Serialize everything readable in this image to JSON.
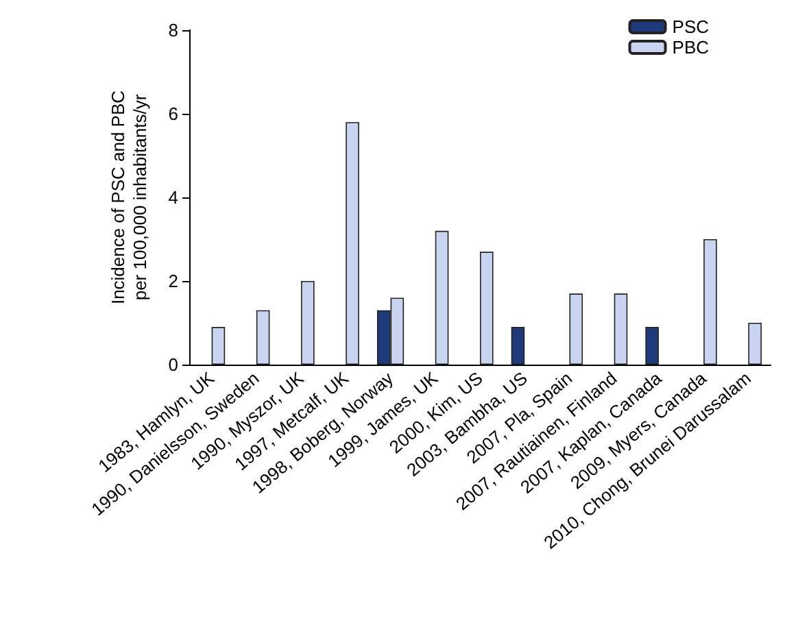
{
  "chart_data": {
    "type": "bar",
    "ylabel": "Incidence of PSC and PBC\nper 100,000 inhabitants/yr",
    "categories": [
      "1983, Hamlyn, UK",
      "1990, Danielsson, Sweden",
      "1990, Myszor, UK",
      "1997, Metcalf, UK",
      "1998, Boberg, Norway",
      "1999, James, UK",
      "2000, Kim, US",
      "2003, Bambha, US",
      "2007, Pla, Spain",
      "2007, Rautiainen, Finland",
      "2007, Kaplan, Canada",
      "2009, Myers, Canada",
      "2010, Chong, Brunei Darussalam"
    ],
    "series": [
      {
        "name": "PSC",
        "color": "#1f3a7a",
        "values": [
          null,
          null,
          null,
          null,
          1.3,
          null,
          null,
          0.9,
          null,
          null,
          0.9,
          null,
          null
        ]
      },
      {
        "name": "PBC",
        "color": "#c8d4f0",
        "values": [
          0.9,
          1.3,
          2.0,
          5.8,
          1.6,
          3.2,
          2.7,
          null,
          1.7,
          1.7,
          null,
          3.0,
          1.0
        ]
      }
    ],
    "ylim": [
      0,
      8
    ],
    "yticks": [
      0,
      2,
      4,
      6,
      8
    ],
    "grid": false,
    "legend": "top right"
  }
}
